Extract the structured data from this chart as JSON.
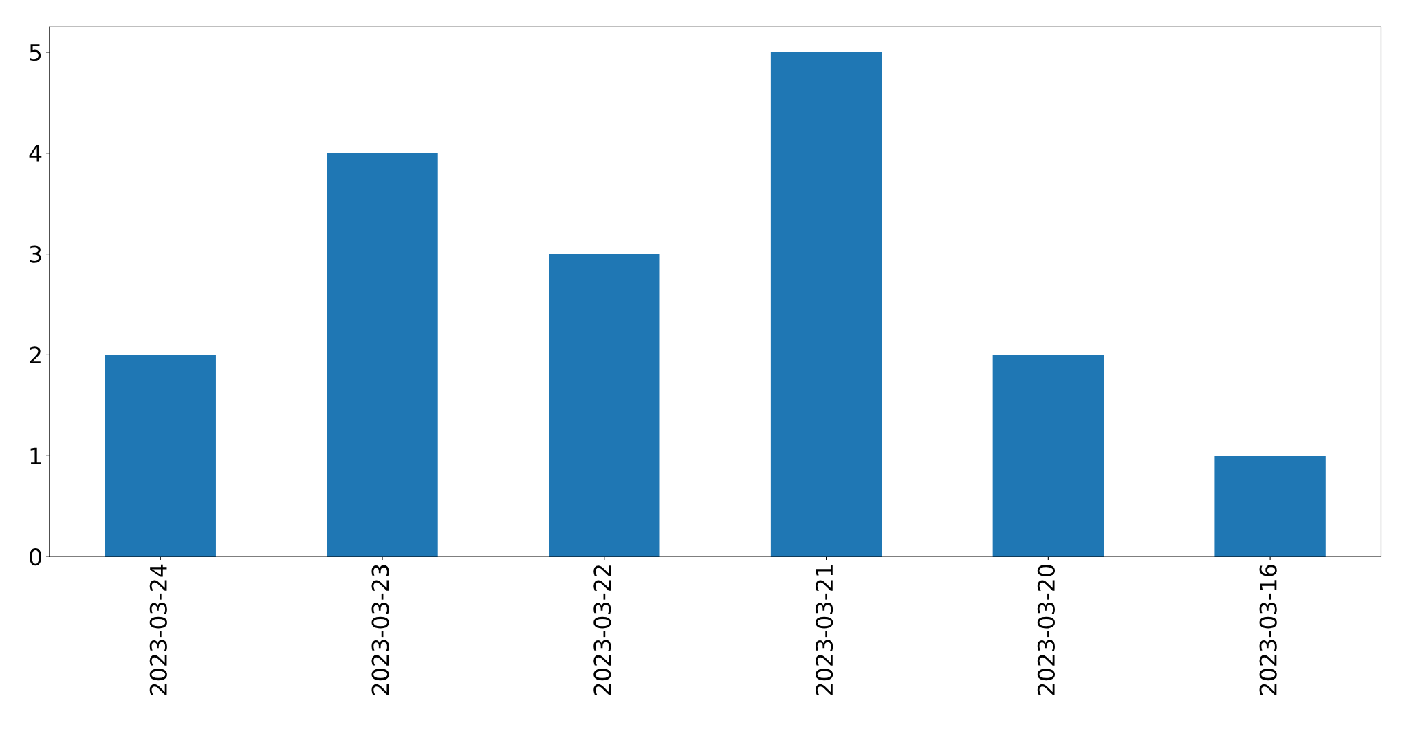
{
  "chart_data": {
    "type": "bar",
    "categories": [
      "2023-03-24",
      "2023-03-23",
      "2023-03-22",
      "2023-03-21",
      "2023-03-20",
      "2023-03-16"
    ],
    "values": [
      2,
      4,
      3,
      5,
      2,
      1
    ],
    "color": "#1f77b4",
    "ylim": [
      0,
      5.25
    ],
    "yticks": [
      0,
      1,
      2,
      3,
      4,
      5
    ],
    "grid": false
  }
}
